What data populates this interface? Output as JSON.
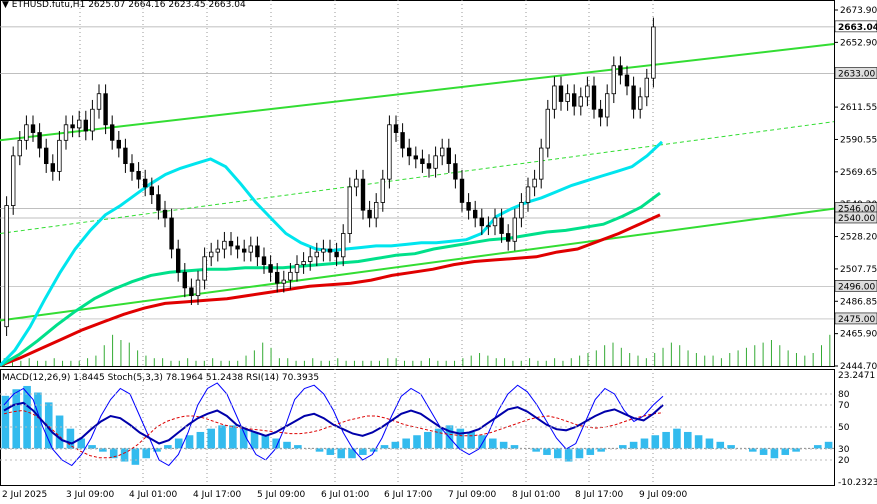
{
  "header": {
    "symbol": "ETHUSD.futu,H1",
    "open": "2625.07",
    "high": "2664.16",
    "low": "2623.45",
    "close": "2663.04"
  },
  "indicators_header": {
    "macd": "MACD(12,26,9) 1.8445",
    "stoch": "Stoch(5,3,3) 78.1964 51.2438",
    "rsi": "RSI(14) 70.3935"
  },
  "colors": {
    "candle": "#000000",
    "ema_fast": "#00e5ee",
    "ema_mid": "#00e08a",
    "ema_slow": "#e00000",
    "channel": "#33dd33",
    "volume": "#33aa33",
    "macd_hist": "#33bbee",
    "signal": "#0000aa",
    "stoch_main": "#0000ff",
    "stoch_signal": "#dd0000"
  },
  "chart_data": [
    {
      "type": "candlestick",
      "title": "ETHUSD.futu,H1",
      "ylim": [
        2444.7,
        2673.9
      ],
      "price_ticks": [
        "2673.90",
        "2652.90",
        "2632.00",
        "2611.55",
        "2590.55",
        "2569.65",
        "2549.20",
        "2528.20",
        "2507.75",
        "2486.85",
        "2465.90",
        "2444.70"
      ],
      "x_labels": [
        "2 Jul 2025",
        "3 Jul 09:00",
        "4 Jul 01:00",
        "4 Jul 17:00",
        "5 Jul 09:00",
        "6 Jul 01:00",
        "6 Jul 17:00",
        "7 Jul 09:00",
        "8 Jul 01:00",
        "8 Jul 17:00",
        "9 Jul 09:00"
      ],
      "level_labels": [
        {
          "value": 2663.04,
          "label": "2663.04"
        },
        {
          "value": 2633.0,
          "label": "2633.00"
        },
        {
          "value": 2546.0,
          "label": "2546.00"
        },
        {
          "value": 2540.0,
          "label": "2540.00"
        },
        {
          "value": 2496.0,
          "label": "2496.00"
        },
        {
          "value": 2475.0,
          "label": "2475.00"
        }
      ],
      "close_series": [
        2470,
        2548,
        2580,
        2590,
        2600,
        2595,
        2585,
        2575,
        2570,
        2590,
        2600,
        2598,
        2603,
        2596,
        2610,
        2620,
        2600,
        2590,
        2585,
        2575,
        2570,
        2565,
        2560,
        2555,
        2545,
        2540,
        2520,
        2505,
        2495,
        2490,
        2500,
        2515,
        2518,
        2520,
        2525,
        2522,
        2520,
        2518,
        2522,
        2515,
        2510,
        2505,
        2498,
        2500,
        2505,
        2510,
        2512,
        2515,
        2518,
        2520,
        2518,
        2515,
        2530,
        2560,
        2565,
        2545,
        2540,
        2550,
        2565,
        2600,
        2595,
        2585,
        2580,
        2578,
        2575,
        2572,
        2580,
        2585,
        2575,
        2565,
        2550,
        2545,
        2540,
        2535,
        2535,
        2540,
        2530,
        2525,
        2540,
        2550,
        2560,
        2565,
        2585,
        2610,
        2625,
        2615,
        2620,
        2612,
        2618,
        2625,
        2610,
        2605,
        2620,
        2638,
        2632,
        2625,
        2610,
        2618,
        2630,
        2663
      ],
      "ema_fast": [
        2445,
        2455,
        2470,
        2488,
        2505,
        2520,
        2532,
        2542,
        2548,
        2555,
        2562,
        2568,
        2572,
        2575,
        2578,
        2573,
        2562,
        2550,
        2540,
        2530,
        2524,
        2520,
        2519,
        2520,
        2521,
        2522,
        2522,
        2523,
        2524,
        2524,
        2525,
        2526,
        2530,
        2541,
        2546,
        2550,
        2553,
        2557,
        2561,
        2564,
        2567,
        2570,
        2573,
        2580,
        2589
      ],
      "ema_mid": [
        2445,
        2452,
        2461,
        2471,
        2480,
        2488,
        2494,
        2499,
        2503,
        2505,
        2506,
        2507,
        2507,
        2508,
        2508,
        2508,
        2509,
        2510,
        2511,
        2512,
        2514,
        2516,
        2517,
        2520,
        2522,
        2524,
        2526,
        2527,
        2529,
        2531,
        2532,
        2534,
        2536,
        2541,
        2547,
        2556
      ],
      "ema_slow": [
        2445,
        2450,
        2456,
        2462,
        2468,
        2473,
        2478,
        2482,
        2485,
        2486,
        2487,
        2488,
        2490,
        2492,
        2494,
        2496,
        2497,
        2498,
        2500,
        2503,
        2505,
        2507,
        2510,
        2512,
        2513,
        2514,
        2515,
        2518,
        2520,
        2525,
        2530,
        2536,
        2542
      ],
      "channel_upper": [
        2590,
        2652
      ],
      "channel_lower": [
        2474,
        2546
      ],
      "channel_mid": [
        2530,
        2602
      ],
      "volume": [
        3,
        2,
        2,
        3,
        2,
        2,
        3,
        2,
        2,
        2,
        3,
        4,
        8,
        12,
        10,
        9,
        6,
        4,
        3,
        3,
        2,
        2,
        3,
        2,
        2,
        3,
        2,
        2,
        2,
        4,
        6,
        9,
        7,
        3,
        3,
        2,
        2,
        3,
        2,
        2,
        3,
        2,
        2,
        2,
        2,
        2,
        3,
        3,
        2,
        2,
        2,
        3,
        2,
        2,
        2,
        3,
        4,
        5,
        4,
        3,
        3,
        2,
        2,
        3,
        2,
        2,
        3,
        2,
        3,
        4,
        5,
        6,
        8,
        9,
        7,
        5,
        4,
        3,
        5,
        7,
        9,
        8,
        6,
        5,
        4,
        4,
        3,
        5,
        6,
        7,
        8,
        9,
        10,
        8,
        6,
        5,
        4,
        5,
        8,
        12
      ]
    },
    {
      "type": "line",
      "title": "MACD(12,26,9) 1.8445 / Stoch(5,3,3) 78.1964 51.2438 / RSI(14) 70.3935",
      "ylim": [
        -10.2323,
        23.2471
      ],
      "ticks": [
        "23.2471",
        "80",
        "70",
        "50",
        "30",
        "20",
        "-10.2323"
      ],
      "series": [
        {
          "name": "MACD",
          "values": [
            16,
            18,
            19,
            17,
            14,
            10,
            6,
            3,
            1,
            -1,
            -3,
            -4,
            -5,
            -3,
            -1,
            1,
            3,
            4,
            5,
            6,
            7,
            7,
            6,
            5,
            4,
            3,
            2,
            1,
            0,
            -1,
            -2,
            -3,
            -3,
            -2,
            -1,
            1,
            2,
            3,
            4,
            5,
            6,
            7,
            6,
            5,
            4,
            3,
            2,
            1,
            0,
            -1,
            -2,
            -3,
            -4,
            -3,
            -2,
            -1,
            0,
            1,
            2,
            3,
            4,
            5,
            6,
            5,
            4,
            3,
            2,
            1,
            0,
            -1,
            -2,
            -3,
            -2,
            -1,
            0,
            1,
            2
          ]
        },
        {
          "name": "Signal",
          "values": [
            62,
            64,
            65,
            62,
            56,
            48,
            40,
            33,
            28,
            24,
            22,
            22,
            24,
            28,
            34,
            42,
            50,
            55,
            58,
            60,
            60,
            58,
            55,
            52,
            50,
            49,
            48,
            47,
            46,
            45,
            44,
            44,
            45,
            47,
            50,
            53,
            56,
            58,
            60,
            60,
            58,
            55,
            52,
            50,
            48,
            46,
            44,
            43,
            42,
            42,
            43,
            45,
            48,
            51,
            54,
            57,
            59,
            60,
            58,
            55,
            52,
            50,
            49,
            50,
            52,
            55,
            58,
            60,
            62,
            63
          ]
        },
        {
          "name": "Stoch",
          "values": [
            70,
            80,
            85,
            75,
            50,
            30,
            20,
            15,
            25,
            40,
            60,
            75,
            85,
            80,
            60,
            40,
            20,
            15,
            25,
            45,
            70,
            85,
            90,
            80,
            60,
            40,
            25,
            20,
            30,
            50,
            75,
            85,
            88,
            80,
            65,
            45,
            30,
            20,
            25,
            40,
            60,
            78,
            85,
            80,
            65,
            50,
            40,
            30,
            25,
            30,
            45,
            65,
            80,
            88,
            82,
            70,
            55,
            40,
            30,
            35,
            55,
            75,
            85,
            80,
            65,
            55,
            60,
            70,
            78
          ]
        },
        {
          "name": "RSI",
          "values": [
            65,
            70,
            72,
            65,
            55,
            45,
            38,
            35,
            40,
            48,
            55,
            60,
            58,
            52,
            45,
            40,
            35,
            38,
            45,
            52,
            58,
            62,
            65,
            60,
            52,
            48,
            45,
            42,
            45,
            50,
            55,
            60,
            62,
            58,
            52,
            48,
            44,
            42,
            45,
            50,
            56,
            62,
            65,
            62,
            56,
            50,
            46,
            44,
            45,
            48,
            54,
            60,
            66,
            68,
            64,
            58,
            52,
            48,
            47,
            50,
            55,
            60,
            64,
            66,
            62,
            58,
            56,
            62,
            70
          ]
        }
      ]
    }
  ]
}
